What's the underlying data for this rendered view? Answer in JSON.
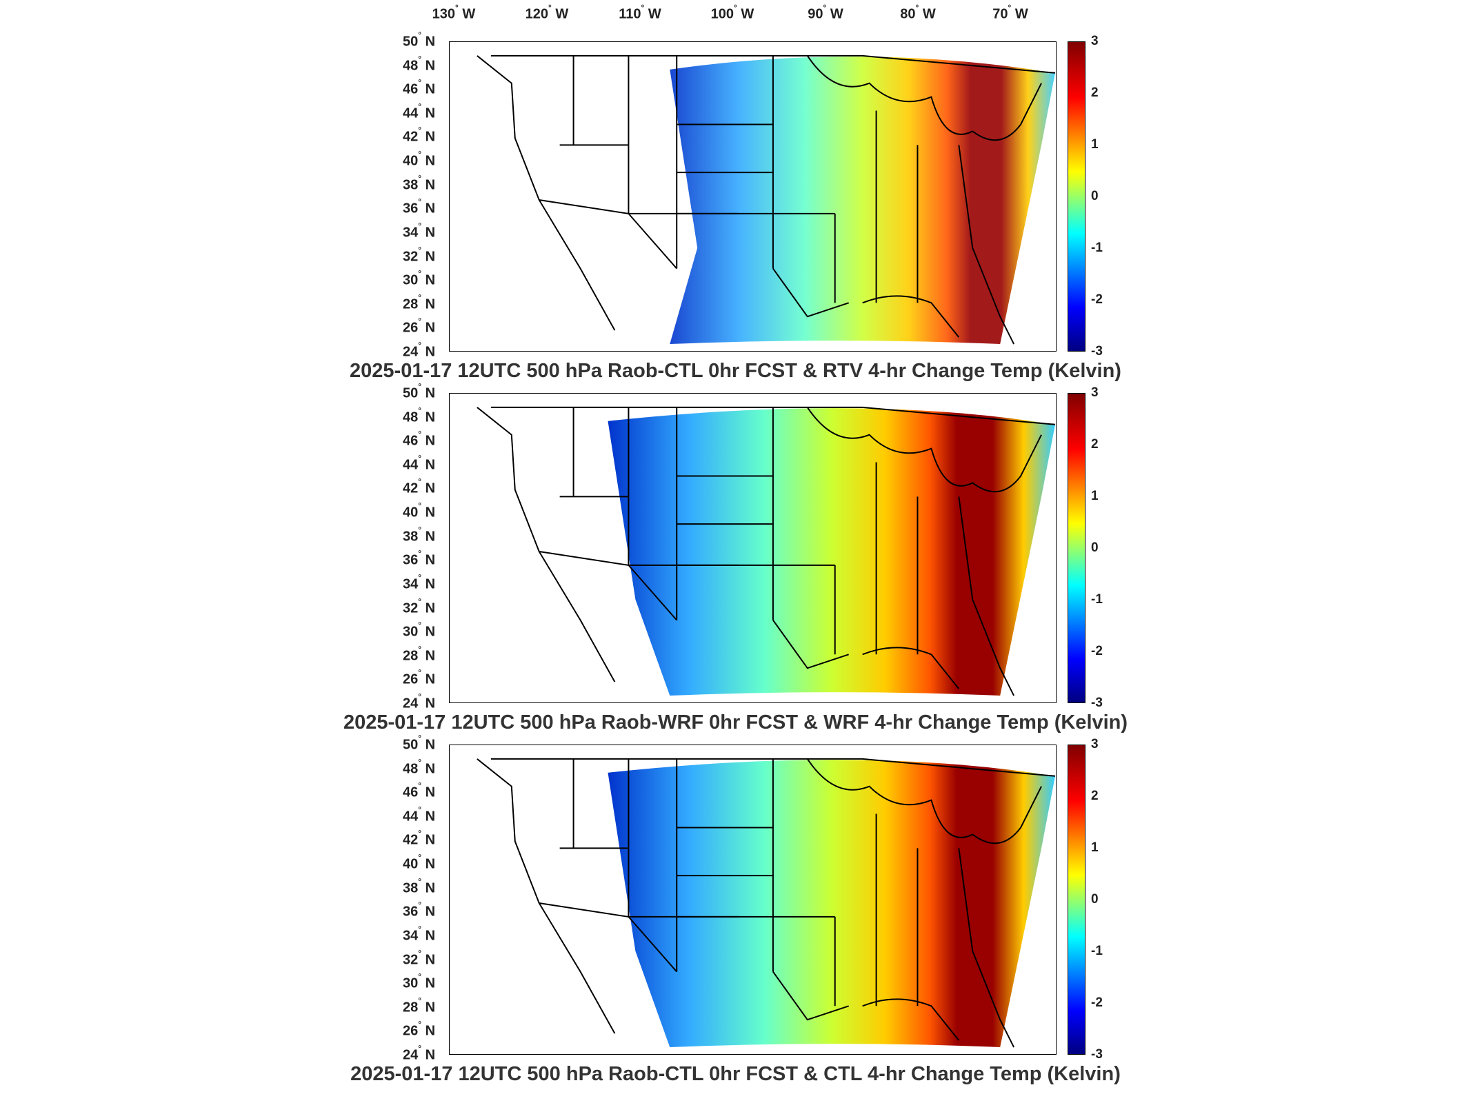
{
  "lon_labels": [
    {
      "deg": "130",
      "hem": "W"
    },
    {
      "deg": "120",
      "hem": "W"
    },
    {
      "deg": "110",
      "hem": "W"
    },
    {
      "deg": "100",
      "hem": "W"
    },
    {
      "deg": "90",
      "hem": "W"
    },
    {
      "deg": "80",
      "hem": "W"
    },
    {
      "deg": "70",
      "hem": "W"
    }
  ],
  "lat_labels": [
    {
      "deg": "50",
      "hem": "N"
    },
    {
      "deg": "48",
      "hem": "N"
    },
    {
      "deg": "46",
      "hem": "N"
    },
    {
      "deg": "44",
      "hem": "N"
    },
    {
      "deg": "42",
      "hem": "N"
    },
    {
      "deg": "40",
      "hem": "N"
    },
    {
      "deg": "38",
      "hem": "N"
    },
    {
      "deg": "36",
      "hem": "N"
    },
    {
      "deg": "34",
      "hem": "N"
    },
    {
      "deg": "32",
      "hem": "N"
    },
    {
      "deg": "30",
      "hem": "N"
    },
    {
      "deg": "28",
      "hem": "N"
    },
    {
      "deg": "26",
      "hem": "N"
    },
    {
      "deg": "24",
      "hem": "N"
    }
  ],
  "colorbar": {
    "ticks": [
      "3",
      "2",
      "1",
      "0",
      "-1",
      "-2",
      "-3"
    ],
    "colors": [
      "#800000",
      "#ff0000",
      "#ff8000",
      "#ffff00",
      "#80ff80",
      "#00ffff",
      "#0080ff",
      "#0000ff",
      "#000080"
    ]
  },
  "panels": [
    {
      "title": "2025-01-17 12UTC 500 hPa Raob-CTL 0hr FCST & RTV 4-hr Change Temp (Kelvin)"
    },
    {
      "title": "2025-01-17 12UTC 500 hPa Raob-WRF 0hr FCST & WRF 4-hr Change Temp (Kelvin)"
    },
    {
      "title": "2025-01-17 12UTC 500 hPa Raob-CTL 0hr FCST & CTL 4-hr Change Temp (Kelvin)"
    }
  ]
}
